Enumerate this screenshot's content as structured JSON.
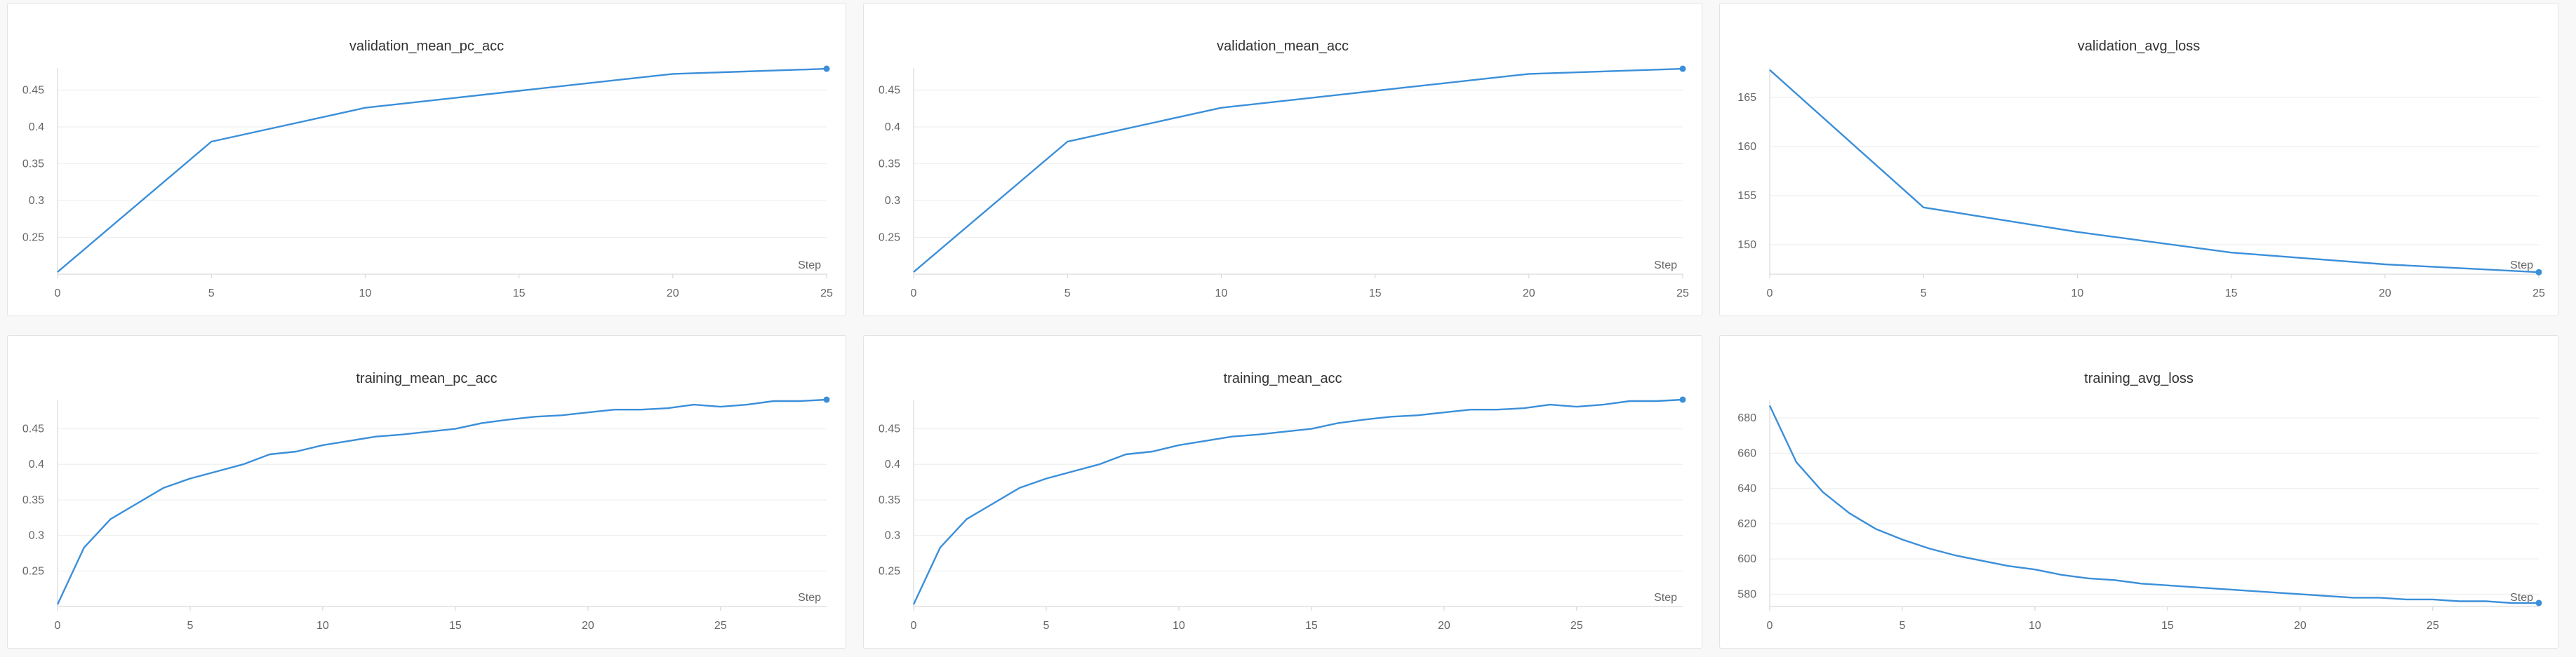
{
  "chart_data": [
    {
      "id": "validation_mean_pc_acc",
      "type": "line",
      "title": "validation_mean_pc_acc",
      "xlabel": "Step",
      "ylabel": "",
      "xlim": [
        0,
        25
      ],
      "ylim": [
        0.2,
        0.48
      ],
      "xticks": [
        0,
        5,
        10,
        15,
        20,
        25
      ],
      "yticks": [
        0.25,
        0.3,
        0.35,
        0.4,
        0.45
      ],
      "ytick_labels": [
        "0.25",
        "0.3",
        "0.35",
        "0.4",
        "0.45"
      ],
      "grid": true,
      "color": "#3b8fd9",
      "series": [
        {
          "x": [
            0,
            5,
            10,
            15,
            20,
            25
          ],
          "y": [
            0.203,
            0.38,
            0.426,
            0.449,
            0.472,
            0.479
          ]
        }
      ]
    },
    {
      "id": "validation_mean_acc",
      "type": "line",
      "title": "validation_mean_acc",
      "xlabel": "Step",
      "ylabel": "",
      "xlim": [
        0,
        25
      ],
      "ylim": [
        0.2,
        0.48
      ],
      "xticks": [
        0,
        5,
        10,
        15,
        20,
        25
      ],
      "yticks": [
        0.25,
        0.3,
        0.35,
        0.4,
        0.45
      ],
      "ytick_labels": [
        "0.25",
        "0.3",
        "0.35",
        "0.4",
        "0.45"
      ],
      "grid": true,
      "color": "#3b8fd9",
      "series": [
        {
          "x": [
            0,
            5,
            10,
            15,
            20,
            25
          ],
          "y": [
            0.203,
            0.38,
            0.426,
            0.449,
            0.472,
            0.479
          ]
        }
      ]
    },
    {
      "id": "validation_avg_loss",
      "type": "line",
      "title": "validation_avg_loss",
      "xlabel": "Step",
      "ylabel": "",
      "xlim": [
        0,
        25
      ],
      "ylim": [
        147,
        168
      ],
      "xticks": [
        0,
        5,
        10,
        15,
        20,
        25
      ],
      "yticks": [
        150,
        155,
        160,
        165
      ],
      "ytick_labels": [
        "150",
        "155",
        "160",
        "165"
      ],
      "grid": true,
      "color": "#3b8fd9",
      "series": [
        {
          "x": [
            0,
            5,
            10,
            15,
            20,
            25
          ],
          "y": [
            167.8,
            153.8,
            151.3,
            149.2,
            148.0,
            147.2
          ]
        }
      ]
    },
    {
      "id": "training_mean_pc_acc",
      "type": "line",
      "title": "training_mean_pc_acc",
      "xlabel": "Step",
      "ylabel": "",
      "xlim": [
        0,
        29
      ],
      "ylim": [
        0.2,
        0.49
      ],
      "xticks": [
        0,
        5,
        10,
        15,
        20,
        25
      ],
      "yticks": [
        0.25,
        0.3,
        0.35,
        0.4,
        0.45
      ],
      "ytick_labels": [
        "0.25",
        "0.3",
        "0.35",
        "0.4",
        "0.45"
      ],
      "grid": true,
      "color": "#3b8fd9",
      "series": [
        {
          "x": [
            0,
            1,
            2,
            3,
            4,
            5,
            6,
            7,
            8,
            9,
            10,
            11,
            12,
            13,
            14,
            15,
            16,
            17,
            18,
            19,
            20,
            21,
            22,
            23,
            24,
            25,
            26,
            27,
            28,
            29
          ],
          "y": [
            0.203,
            0.283,
            0.323,
            0.345,
            0.367,
            0.38,
            0.39,
            0.4,
            0.414,
            0.418,
            0.427,
            0.433,
            0.439,
            0.442,
            0.446,
            0.45,
            0.458,
            0.463,
            0.467,
            0.469,
            0.473,
            0.477,
            0.477,
            0.479,
            0.484,
            0.481,
            0.484,
            0.489,
            0.489,
            0.491
          ]
        }
      ]
    },
    {
      "id": "training_mean_acc",
      "type": "line",
      "title": "training_mean_acc",
      "xlabel": "Step",
      "ylabel": "",
      "xlim": [
        0,
        29
      ],
      "ylim": [
        0.2,
        0.49
      ],
      "xticks": [
        0,
        5,
        10,
        15,
        20,
        25
      ],
      "yticks": [
        0.25,
        0.3,
        0.35,
        0.4,
        0.45
      ],
      "ytick_labels": [
        "0.25",
        "0.3",
        "0.35",
        "0.4",
        "0.45"
      ],
      "grid": true,
      "color": "#3b8fd9",
      "series": [
        {
          "x": [
            0,
            1,
            2,
            3,
            4,
            5,
            6,
            7,
            8,
            9,
            10,
            11,
            12,
            13,
            14,
            15,
            16,
            17,
            18,
            19,
            20,
            21,
            22,
            23,
            24,
            25,
            26,
            27,
            28,
            29
          ],
          "y": [
            0.203,
            0.283,
            0.323,
            0.345,
            0.367,
            0.38,
            0.39,
            0.4,
            0.414,
            0.418,
            0.427,
            0.433,
            0.439,
            0.442,
            0.446,
            0.45,
            0.458,
            0.463,
            0.467,
            0.469,
            0.473,
            0.477,
            0.477,
            0.479,
            0.484,
            0.481,
            0.484,
            0.489,
            0.489,
            0.491
          ]
        }
      ]
    },
    {
      "id": "training_avg_loss",
      "type": "line",
      "title": "training_avg_loss",
      "xlabel": "Step",
      "ylabel": "",
      "xlim": [
        0,
        29
      ],
      "ylim": [
        573,
        690
      ],
      "xticks": [
        0,
        5,
        10,
        15,
        20,
        25
      ],
      "yticks": [
        580,
        600,
        620,
        640,
        660,
        680
      ],
      "ytick_labels": [
        "580",
        "600",
        "620",
        "640",
        "660",
        "680"
      ],
      "grid": true,
      "color": "#3b8fd9",
      "series": [
        {
          "x": [
            0,
            1,
            2,
            3,
            4,
            5,
            6,
            7,
            8,
            9,
            10,
            11,
            12,
            13,
            14,
            15,
            16,
            17,
            18,
            19,
            20,
            21,
            22,
            23,
            24,
            25,
            26,
            27,
            28,
            29
          ],
          "y": [
            687,
            655,
            638,
            626,
            617,
            611,
            606,
            602,
            599,
            596,
            594,
            591,
            589,
            588,
            586,
            585,
            584,
            583,
            582,
            581,
            580,
            579,
            578,
            578,
            577,
            577,
            576,
            576,
            575,
            575
          ]
        }
      ]
    }
  ]
}
